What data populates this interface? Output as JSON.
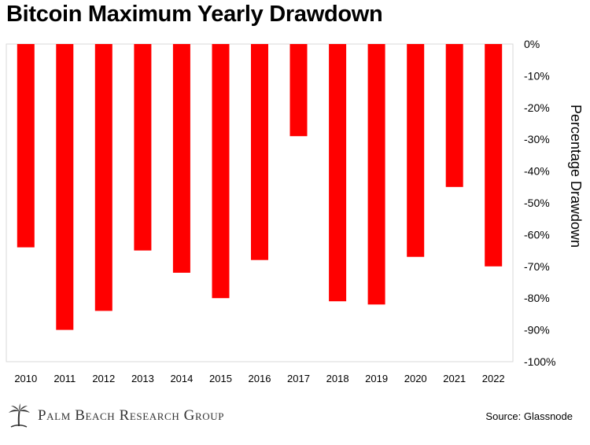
{
  "chart_data": {
    "type": "bar",
    "title": "Bitcoin Maximum Yearly Drawdown",
    "ylabel": "Percentage Drawdown",
    "xlabel": "",
    "categories": [
      "2010",
      "2011",
      "2012",
      "2013",
      "2014",
      "2015",
      "2016",
      "2017",
      "2018",
      "2019",
      "2020",
      "2021",
      "2022"
    ],
    "values": [
      -64,
      -90,
      -84,
      -65,
      -72,
      -80,
      -68,
      -29,
      -81,
      -82,
      -67,
      -45,
      -70
    ],
    "ylim": [
      -100,
      0
    ],
    "y_ticks": [
      "0%",
      "-10%",
      "-20%",
      "-30%",
      "-40%",
      "-50%",
      "-60%",
      "-70%",
      "-80%",
      "-90%",
      "-100%"
    ],
    "y_axis_position": "right",
    "grid": false,
    "bar_color": "#ff0000"
  },
  "footer": {
    "brand": "Palm Beach Research Group",
    "logo_icon": "palm-tree-logo-icon",
    "source": "Source: Glassnode"
  }
}
